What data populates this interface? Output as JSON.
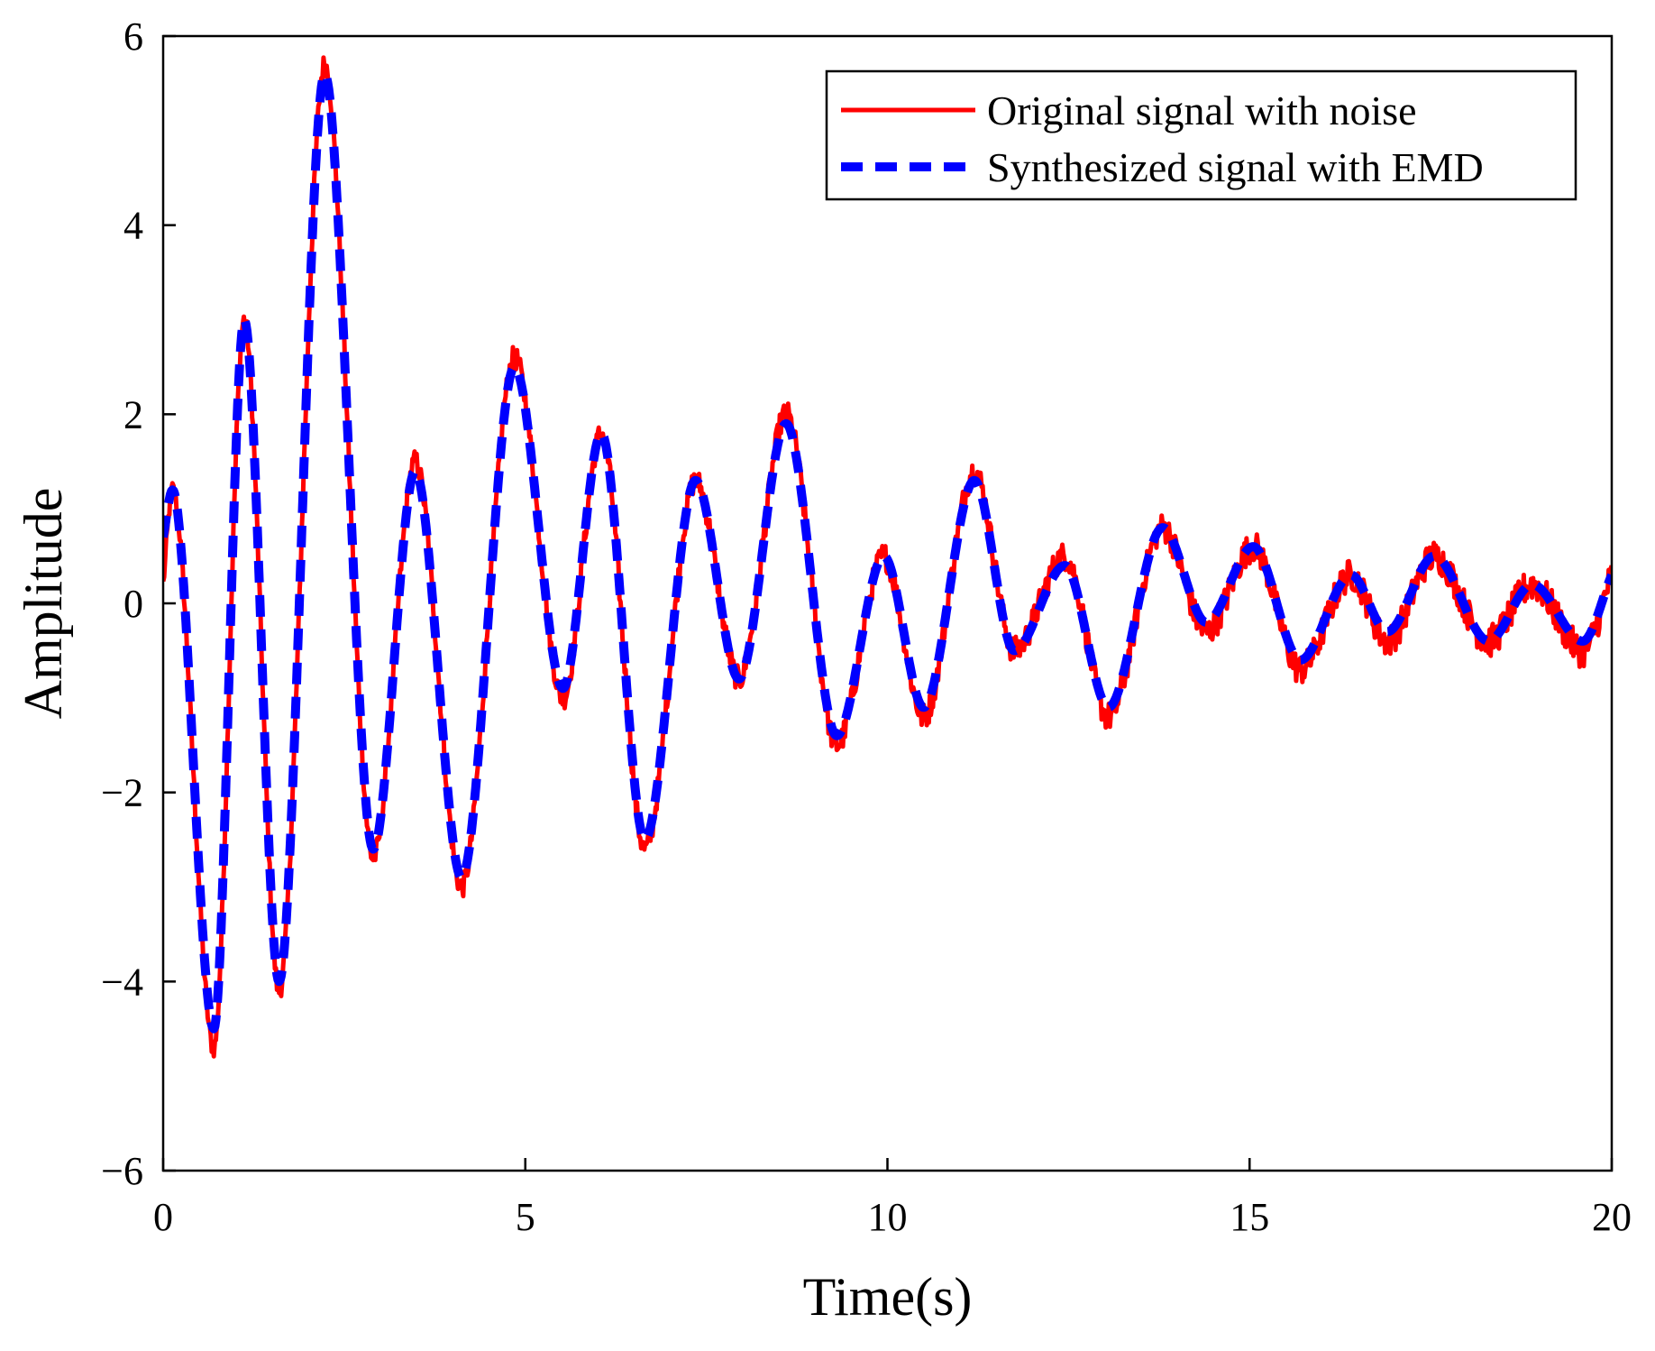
{
  "chart_data": {
    "type": "line",
    "title": "",
    "xlabel": "Time(s)",
    "ylabel": "Amplitude",
    "xlim": [
      0,
      20
    ],
    "ylim": [
      -6,
      6
    ],
    "xticks": [
      0,
      5,
      10,
      15,
      20
    ],
    "xtick_labels": [
      "0",
      "5",
      "10",
      "15",
      "20"
    ],
    "yticks": [
      -6,
      -4,
      -2,
      0,
      2,
      4,
      6
    ],
    "ytick_labels": [
      "−6",
      "−4",
      "−2",
      "0",
      "2",
      "4",
      "6"
    ],
    "grid": false,
    "legend_position": "top-right",
    "series": [
      {
        "name": "Original signal with noise",
        "color": "#ff0000",
        "style": "solid",
        "noise_amplitude": 0.18,
        "x": [
          0,
          0.13,
          0.7,
          1.12,
          1.6,
          2.23,
          2.9,
          3.48,
          4.12,
          4.85,
          5.52,
          6.05,
          6.65,
          7.35,
          7.95,
          8.6,
          9.3,
          9.95,
          10.5,
          11.2,
          11.75,
          12.45,
          13.05,
          13.8,
          14.4,
          15.05,
          15.7,
          16.4,
          16.9,
          17.55,
          18.3,
          18.9,
          19.6,
          20
        ],
        "y": [
          0.2,
          1.2,
          -4.7,
          3.0,
          -4.1,
          5.7,
          -2.7,
          1.5,
          -3.0,
          2.6,
          -1.0,
          1.8,
          -2.6,
          1.3,
          -0.8,
          2.0,
          -1.5,
          0.5,
          -1.2,
          1.4,
          -0.5,
          0.5,
          -1.2,
          0.8,
          -0.3,
          0.6,
          -0.7,
          0.3,
          -0.4,
          0.5,
          -0.4,
          0.2,
          -0.5,
          0.3
        ]
      },
      {
        "name": "Synthesized signal with EMD",
        "color": "#0000ff",
        "style": "dashed",
        "x": [
          0,
          0.13,
          0.7,
          1.12,
          1.6,
          2.23,
          2.9,
          3.48,
          4.12,
          4.85,
          5.52,
          6.05,
          6.65,
          7.35,
          7.95,
          8.6,
          9.3,
          9.95,
          10.5,
          11.2,
          11.75,
          12.45,
          13.05,
          13.8,
          14.4,
          15.05,
          15.7,
          16.4,
          16.9,
          17.55,
          18.3,
          18.9,
          19.6,
          20
        ],
        "y": [
          0.7,
          1.2,
          -4.5,
          3.0,
          -4.0,
          5.6,
          -2.6,
          1.4,
          -2.9,
          2.5,
          -0.9,
          1.8,
          -2.5,
          1.3,
          -0.8,
          1.9,
          -1.4,
          0.5,
          -1.1,
          1.3,
          -0.5,
          0.4,
          -1.1,
          0.8,
          -0.2,
          0.6,
          -0.6,
          0.3,
          -0.3,
          0.5,
          -0.4,
          0.2,
          -0.4,
          0.3
        ]
      }
    ]
  }
}
